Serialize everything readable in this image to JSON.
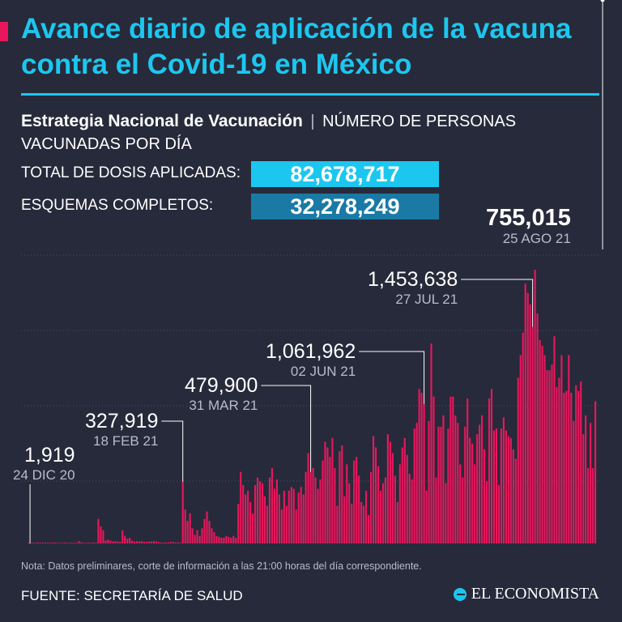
{
  "header": {
    "title": "Avance diario de aplicación de la vacuna contra el Covid-19 en México"
  },
  "subtitle": {
    "bold": "Estrategia Nacional de Vacunación",
    "separator": "|",
    "rest": "NÚMERO DE PERSONAS VACUNADAS POR DÍA"
  },
  "stats": {
    "total_label": "TOTAL DE DOSIS APLICADAS:",
    "total_value": "82,678,717",
    "complete_label": "ESQUEMAS COMPLETOS:",
    "complete_value": "32,278,249"
  },
  "colors": {
    "background": "#272a3a",
    "bar": "#e8175d",
    "accent": "#1cc7ef",
    "accent_dark": "#1a7aa5",
    "muted_text": "#b8bcc8"
  },
  "chart_data": {
    "type": "bar",
    "x_range": [
      "24 DIC 20",
      "25 AGO 21"
    ],
    "ylim": [
      0,
      1600000
    ],
    "grid": true,
    "values": [
      1919,
      1200,
      1500,
      2500,
      5000,
      3000,
      4000,
      4500,
      4000,
      3500,
      4500,
      5000,
      2500,
      2000,
      3000,
      4000,
      3000,
      3500,
      2000,
      2500,
      4000,
      12000,
      6000,
      3000,
      2500,
      4000,
      3000,
      5000,
      4000,
      130000,
      90000,
      70000,
      15000,
      20000,
      15000,
      10000,
      12000,
      10000,
      8000,
      70000,
      40000,
      25000,
      30000,
      15000,
      10000,
      12000,
      10000,
      12000,
      8000,
      9000,
      10000,
      10000,
      12000,
      10000,
      7000,
      5000,
      5000,
      6000,
      5000,
      8000,
      7000,
      5000,
      6000,
      4000,
      327919,
      180000,
      120000,
      160000,
      80000,
      45000,
      70000,
      40000,
      80000,
      130000,
      170000,
      120000,
      80000,
      60000,
      40000,
      35000,
      30000,
      30000,
      40000,
      35000,
      30000,
      40000,
      30000,
      210000,
      380000,
      310000,
      260000,
      280000,
      220000,
      160000,
      310000,
      350000,
      330000,
      320000,
      250000,
      200000,
      350000,
      400000,
      290000,
      340000,
      260000,
      180000,
      280000,
      200000,
      280000,
      300000,
      290000,
      180000,
      270000,
      300000,
      260000,
      380000,
      479900,
      380000,
      400000,
      350000,
      290000,
      340000,
      440000,
      540000,
      510000,
      460000,
      560000,
      400000,
      200000,
      490000,
      520000,
      250000,
      420000,
      320000,
      210000,
      440000,
      460000,
      360000,
      220000,
      200000,
      280000,
      150000,
      380000,
      570000,
      510000,
      410000,
      280000,
      320000,
      350000,
      580000,
      540000,
      480000,
      360000,
      220000,
      420000,
      510000,
      560000,
      470000,
      370000,
      340000,
      610000,
      640000,
      820000,
      800000,
      740000,
      280000,
      650000,
      1061962,
      780000,
      350000,
      620000,
      620000,
      680000,
      320000,
      610000,
      780000,
      780000,
      680000,
      640000,
      420000,
      350000,
      620000,
      770000,
      560000,
      530000,
      420000,
      580000,
      630000,
      680000,
      500000,
      330000,
      770000,
      820000,
      600000,
      610000,
      310000,
      610000,
      670000,
      600000,
      570000,
      560000,
      500000,
      450000,
      880000,
      1000000,
      1120000,
      1380000,
      1330000,
      1270000,
      1150000,
      1453638,
      1220000,
      1080000,
      1050000,
      1000000,
      920000,
      920000,
      950000,
      1100000,
      830000,
      880000,
      1000000,
      800000,
      810000,
      1000000,
      800000,
      650000,
      840000,
      810000,
      860000,
      580000,
      680000,
      400000,
      640000,
      400000,
      755015
    ],
    "annotations": [
      {
        "value": "1,919",
        "date": "24 DIC 20",
        "index": 0,
        "label_x": 30,
        "label_y": 570,
        "big": false
      },
      {
        "value": "327,919",
        "date": "18 FEB 21",
        "index": 64,
        "label_x": 105,
        "label_y": 528,
        "big": false
      },
      {
        "value": "479,900",
        "date": "31 MAR 21",
        "index": 117,
        "label_x": 228,
        "label_y": 484,
        "big": false
      },
      {
        "value": "1,061,962",
        "date": "02 JUN 21",
        "index": 164,
        "label_x": 328,
        "label_y": 442,
        "big": false
      },
      {
        "value": "1,453,638",
        "date": "27 JUL 21",
        "index": 209,
        "label_x": 454,
        "label_y": 353,
        "big": false
      },
      {
        "value": "755,015",
        "date": "25 AGO 21",
        "index": 238,
        "label_x": 600,
        "label_y": 278,
        "big": true
      }
    ]
  },
  "footer": {
    "note": "Nota: Datos preliminares, corte de información a las 21:00 horas del día correspondiente.",
    "source": "FUENTE: SECRETARÍA DE SALUD",
    "logo": "EL ECONOMISTA",
    "logo_icon": "economista-logo-icon"
  }
}
